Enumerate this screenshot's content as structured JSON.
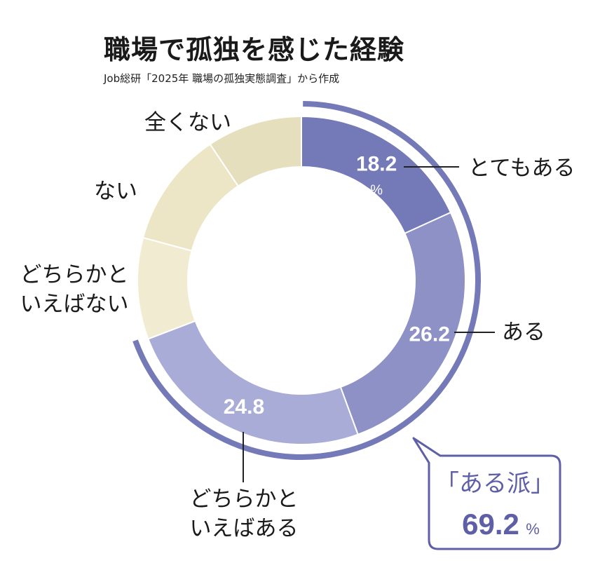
{
  "title": "職場で孤独を感じた経験",
  "subtitle": "Job総研「2025年 職場の孤独実態調査」から作成",
  "colors": {
    "とてもある": "#7479b8",
    "ある": "#8d91c6",
    "どちらかといえばある": "#a9acd6",
    "どちらかといえばない": "#f1ecd1",
    "ない": "#ece6c7",
    "全くない": "#e6dfbd",
    "accent": "#5e5fa6"
  },
  "chart_data": {
    "type": "pie",
    "title": "職場で孤独を感じた経験",
    "categories": [
      "とてもある",
      "ある",
      "どちらかといえばある",
      "どちらかといえばない",
      "ない",
      "全くない"
    ],
    "values": [
      18.2,
      26.2,
      24.8,
      10.0,
      11.4,
      9.4
    ],
    "value_labels": [
      "18.2",
      "26.2",
      "24.8",
      "",
      "",
      ""
    ],
    "unit_label": "%",
    "category_lines": [
      [
        "とてもある"
      ],
      [
        "ある"
      ],
      [
        "どちらかと",
        "いえばある"
      ],
      [
        "どちらかと",
        "いえばない"
      ],
      [
        "ない"
      ],
      [
        "全くない"
      ]
    ],
    "group": {
      "label": "「ある派」",
      "value": "69.2",
      "unit": "%"
    },
    "legend": "none"
  }
}
